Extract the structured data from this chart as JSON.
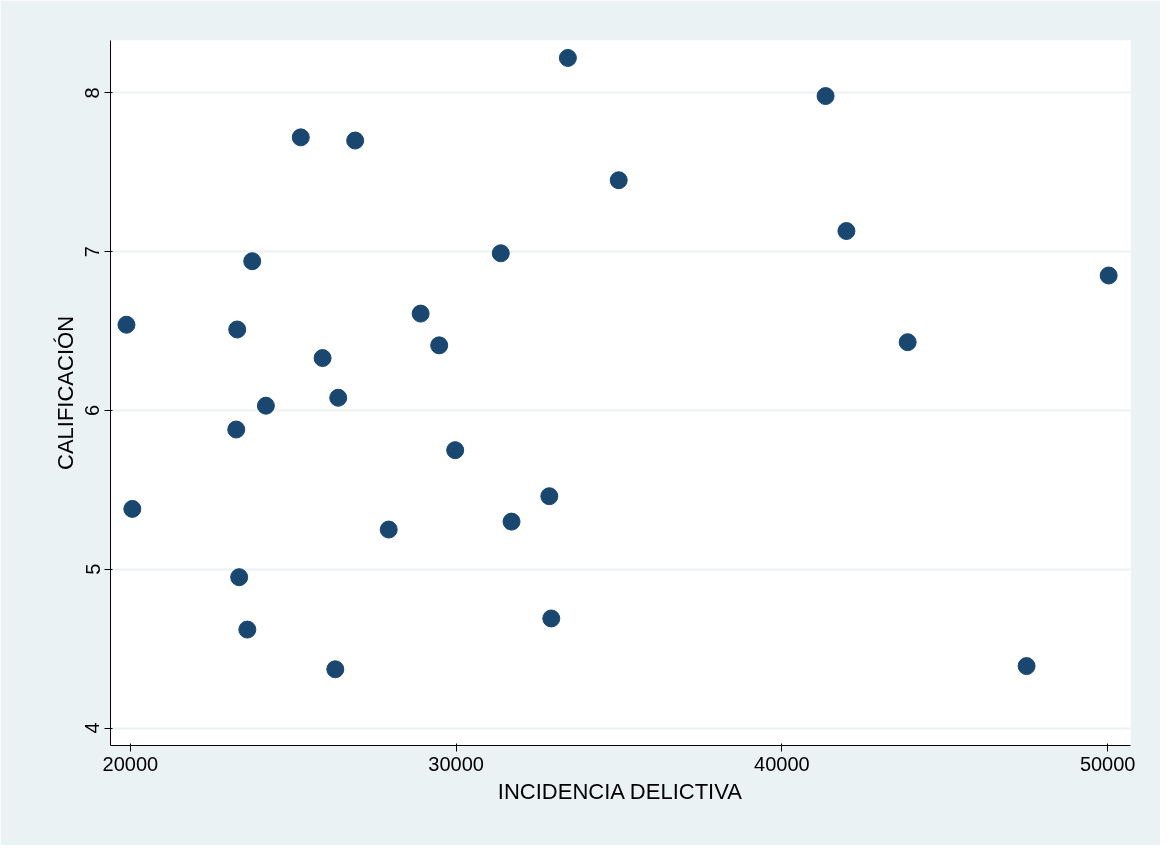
{
  "chart_data": {
    "type": "scatter",
    "xlabel": "INCIDENCIA DELICTIVA",
    "ylabel": "CALIFICACIÓN",
    "x": [
      19880,
      20060,
      23280,
      23250,
      23340,
      23590,
      23740,
      24160,
      25230,
      25900,
      26290,
      26380,
      26900,
      27930,
      28910,
      29480,
      29970,
      31370,
      31700,
      32860,
      32920,
      33430,
      34990,
      41340,
      41980,
      43860,
      47510,
      50030
    ],
    "series": [
      {
        "color": "#1a476f",
        "values": [
          6.54,
          5.38,
          6.51,
          5.88,
          4.95,
          4.62,
          6.94,
          6.03,
          7.72,
          6.33,
          4.37,
          6.08,
          7.7,
          5.25,
          6.61,
          6.41,
          5.75,
          6.99,
          5.3,
          5.46,
          4.69,
          8.22,
          7.45,
          7.98,
          7.13,
          6.43,
          4.39,
          6.85
        ]
      }
    ],
    "xlim": [
      19390,
      50700
    ],
    "ylim": [
      3.89,
      8.33
    ],
    "xticks": [
      20000,
      30000,
      40000,
      50000
    ],
    "yticks": [
      4,
      5,
      6,
      7,
      8
    ],
    "grid": "y",
    "marker": "circle"
  }
}
